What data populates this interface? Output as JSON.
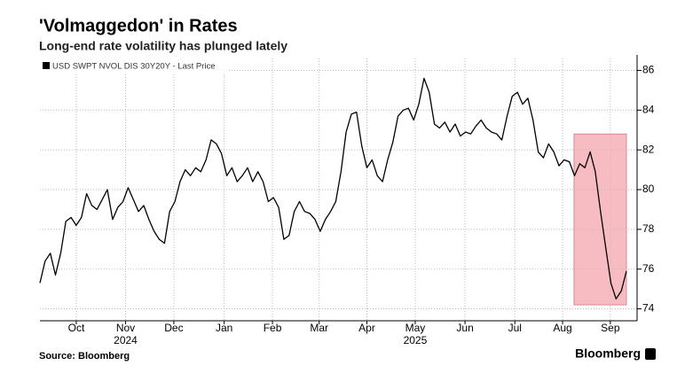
{
  "chart_data": {
    "type": "line",
    "title": "'Volmaggedon' in Rates",
    "subtitle": "Long-end rate volatility has plunged lately",
    "source": "Source: Bloomberg",
    "brand": "Bloomberg",
    "series": [
      {
        "name": "USD SWPT NVOL DIS 30Y20Y - Last Price",
        "color": "#000000",
        "values": [
          75.3,
          76.4,
          76.8,
          75.7,
          76.8,
          78.4,
          78.6,
          78.2,
          78.6,
          79.8,
          79.2,
          79.0,
          79.5,
          80.0,
          78.5,
          79.1,
          79.4,
          80.1,
          79.5,
          78.9,
          79.2,
          78.5,
          77.9,
          77.5,
          77.3,
          78.9,
          79.4,
          80.4,
          81.0,
          80.7,
          81.1,
          80.9,
          81.5,
          82.5,
          82.3,
          81.8,
          80.7,
          81.1,
          80.4,
          80.7,
          81.1,
          80.4,
          80.9,
          80.4,
          79.4,
          79.6,
          79.1,
          77.5,
          77.7,
          78.9,
          79.4,
          78.9,
          78.8,
          78.5,
          77.9,
          78.5,
          78.9,
          79.4,
          80.9,
          82.9,
          83.8,
          83.9,
          82.2,
          81.1,
          81.5,
          80.7,
          80.4,
          81.5,
          82.4,
          83.7,
          84.0,
          84.1,
          83.5,
          84.3,
          85.6,
          84.9,
          83.3,
          83.1,
          83.4,
          82.9,
          83.3,
          82.7,
          82.9,
          82.8,
          83.2,
          83.5,
          83.1,
          82.9,
          82.8,
          82.5,
          83.7,
          84.7,
          84.9,
          84.3,
          84.6,
          83.5,
          81.9,
          81.6,
          82.3,
          81.9,
          81.2,
          81.5,
          81.4,
          80.7,
          81.3,
          81.1,
          81.9,
          80.9,
          78.9,
          77.1,
          75.3,
          74.5,
          74.9,
          75.9
        ]
      }
    ],
    "xlim": [
      0,
      113
    ],
    "xticks": [
      {
        "value": 7,
        "label": "Oct"
      },
      {
        "value": 16.5,
        "label": "Nov"
      },
      {
        "value": 25.8,
        "label": "Dec"
      },
      {
        "value": 35.5,
        "label": "Jan"
      },
      {
        "value": 44.8,
        "label": "Feb"
      },
      {
        "value": 53.8,
        "label": "Mar"
      },
      {
        "value": 63,
        "label": "Apr"
      },
      {
        "value": 72.3,
        "label": "May"
      },
      {
        "value": 81.9,
        "label": "Jun"
      },
      {
        "value": 91.5,
        "label": "Jul"
      },
      {
        "value": 100.7,
        "label": "Aug"
      },
      {
        "value": 109.9,
        "label": "Sep"
      }
    ],
    "year_labels": [
      {
        "value": 16.5,
        "label": "2024"
      },
      {
        "value": 72.3,
        "label": "2025"
      }
    ],
    "ylim": [
      73.4,
      86.6
    ],
    "yticks": [
      74,
      76,
      78,
      80,
      82,
      84,
      86
    ],
    "grid": true,
    "highlight": {
      "xlim": [
        102.9,
        113
      ],
      "ylim": [
        74.2,
        82.8
      ],
      "color": "#f4a6ae"
    }
  }
}
